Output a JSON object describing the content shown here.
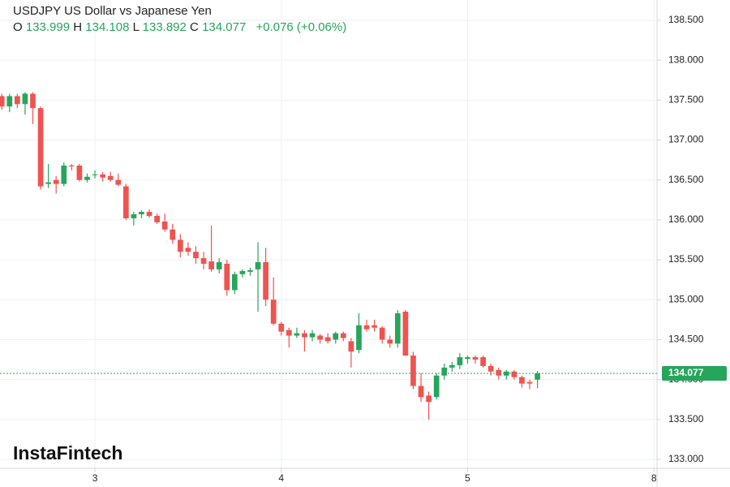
{
  "chart_data": {
    "type": "candlestick",
    "title": "USDJPY US Dollar vs Japanese Yen",
    "ohlc_header": {
      "o_label": "O",
      "o": "133.999",
      "h_label": "H",
      "h": "134.108",
      "l_label": "L",
      "l": "133.892",
      "c_label": "C",
      "c": "134.077",
      "change": "+0.076 (+0.06%)"
    },
    "watermark": "InstaFintech",
    "up_color": "#26a65b",
    "down_color": "#ef5350",
    "x": [
      12,
      13,
      14,
      15,
      16,
      17,
      18,
      19,
      20,
      21,
      22,
      23,
      24,
      25,
      26,
      27,
      28,
      29,
      30,
      31,
      32,
      33,
      34,
      35,
      36,
      37,
      38,
      39,
      40,
      41,
      42,
      43,
      44,
      45,
      46,
      47,
      48,
      49,
      50,
      51,
      52,
      53,
      54,
      55,
      56,
      57,
      58,
      59,
      60,
      61,
      62,
      63,
      64,
      65,
      66,
      67,
      68,
      69,
      70,
      71,
      72,
      73,
      74,
      75,
      76,
      77,
      78,
      79,
      80,
      81
    ],
    "open": [
      137.55,
      137.42,
      137.55,
      137.45,
      137.58,
      137.4,
      136.45,
      136.5,
      136.45,
      136.68,
      136.68,
      136.5,
      136.56,
      136.57,
      136.55,
      136.5,
      136.42,
      136.02,
      136.07,
      136.1,
      136.05,
      135.98,
      135.88,
      135.75,
      135.65,
      135.6,
      135.52,
      135.48,
      135.38,
      135.45,
      135.12,
      135.32,
      135.35,
      135.38,
      135.47,
      135.0,
      134.7,
      134.62,
      134.55,
      134.58,
      134.53,
      134.55,
      134.53,
      134.5,
      134.58,
      134.48,
      134.37,
      134.68,
      134.68,
      134.65,
      134.5,
      134.45,
      134.85,
      134.3,
      133.92,
      133.8,
      133.78,
      134.05,
      134.15,
      134.18,
      134.26,
      134.28,
      134.28,
      134.17,
      134.12,
      134.05,
      134.1,
      134.03,
      133.97,
      133.999
    ],
    "high": [
      137.58,
      137.58,
      137.58,
      137.6,
      137.6,
      137.42,
      136.7,
      136.55,
      136.72,
      136.7,
      136.7,
      136.58,
      136.62,
      136.6,
      136.6,
      136.58,
      136.45,
      136.1,
      136.12,
      136.13,
      136.08,
      136.08,
      135.95,
      135.82,
      135.72,
      135.67,
      135.6,
      135.93,
      135.52,
      135.5,
      135.35,
      135.38,
      135.4,
      135.72,
      135.65,
      135.28,
      134.72,
      134.65,
      134.65,
      134.62,
      134.62,
      134.57,
      134.58,
      134.6,
      134.6,
      134.52,
      134.83,
      134.75,
      134.75,
      134.67,
      134.55,
      134.87,
      134.87,
      134.35,
      134.08,
      133.85,
      134.08,
      134.2,
      134.22,
      134.33,
      134.3,
      134.3,
      134.3,
      134.2,
      134.15,
      134.12,
      134.12,
      134.05,
      134.0,
      134.108
    ],
    "low": [
      137.38,
      137.35,
      137.4,
      137.32,
      137.2,
      136.38,
      136.4,
      136.33,
      136.42,
      136.62,
      136.48,
      136.47,
      136.52,
      136.48,
      136.48,
      136.42,
      136.0,
      135.93,
      136.02,
      136.03,
      135.95,
      135.85,
      135.7,
      135.53,
      135.55,
      135.45,
      135.38,
      135.35,
      135.33,
      135.05,
      135.07,
      135.28,
      135.3,
      134.85,
      134.92,
      134.68,
      134.55,
      134.4,
      134.52,
      134.35,
      134.48,
      134.45,
      134.45,
      134.45,
      134.48,
      134.15,
      134.33,
      134.6,
      134.6,
      134.45,
      134.4,
      134.4,
      134.3,
      133.88,
      133.72,
      133.5,
      133.75,
      134.0,
      134.1,
      134.13,
      134.2,
      134.2,
      134.15,
      134.05,
      134.0,
      134.0,
      134.0,
      133.9,
      133.88,
      133.892
    ],
    "close": [
      137.42,
      137.55,
      137.45,
      137.58,
      137.4,
      136.42,
      136.47,
      136.45,
      136.68,
      136.67,
      136.5,
      136.54,
      136.57,
      136.53,
      136.5,
      136.44,
      136.02,
      136.07,
      136.1,
      136.05,
      135.97,
      135.88,
      135.75,
      135.6,
      135.6,
      135.52,
      135.45,
      135.38,
      135.47,
      135.12,
      135.32,
      135.36,
      135.37,
      135.47,
      135.0,
      134.7,
      134.6,
      134.55,
      134.58,
      134.53,
      134.58,
      134.5,
      134.48,
      134.58,
      134.52,
      134.35,
      134.68,
      134.63,
      134.65,
      134.5,
      134.45,
      134.83,
      134.3,
      133.92,
      133.78,
      133.72,
      134.05,
      134.15,
      134.18,
      134.28,
      134.28,
      134.25,
      134.17,
      134.1,
      134.05,
      134.1,
      134.03,
      133.95,
      133.95,
      134.077
    ],
    "last_price": {
      "value": 134.077,
      "label": "134.077"
    },
    "xlim": [
      11.77,
      96.4
    ],
    "xticks": [
      {
        "value": 24,
        "label": "3"
      },
      {
        "value": 48,
        "label": "4"
      },
      {
        "value": 72,
        "label": "5"
      },
      {
        "value": 96,
        "label": "8"
      }
    ],
    "ylim": [
      132.888,
      138.754
    ],
    "yticks": [
      {
        "value": 133,
        "label": "133.000"
      },
      {
        "value": 133.5,
        "label": "133.500"
      },
      {
        "value": 134,
        "label": "134.000"
      },
      {
        "value": 134.5,
        "label": "134.500"
      },
      {
        "value": 135,
        "label": "135.000"
      },
      {
        "value": 135.5,
        "label": "135.500"
      },
      {
        "value": 136,
        "label": "136.000"
      },
      {
        "value": 136.5,
        "label": "136.500"
      },
      {
        "value": 137,
        "label": "137.000"
      },
      {
        "value": 137.5,
        "label": "137.500"
      },
      {
        "value": 138,
        "label": "138.000"
      },
      {
        "value": 138.5,
        "label": "138.500"
      }
    ],
    "grid": true
  }
}
